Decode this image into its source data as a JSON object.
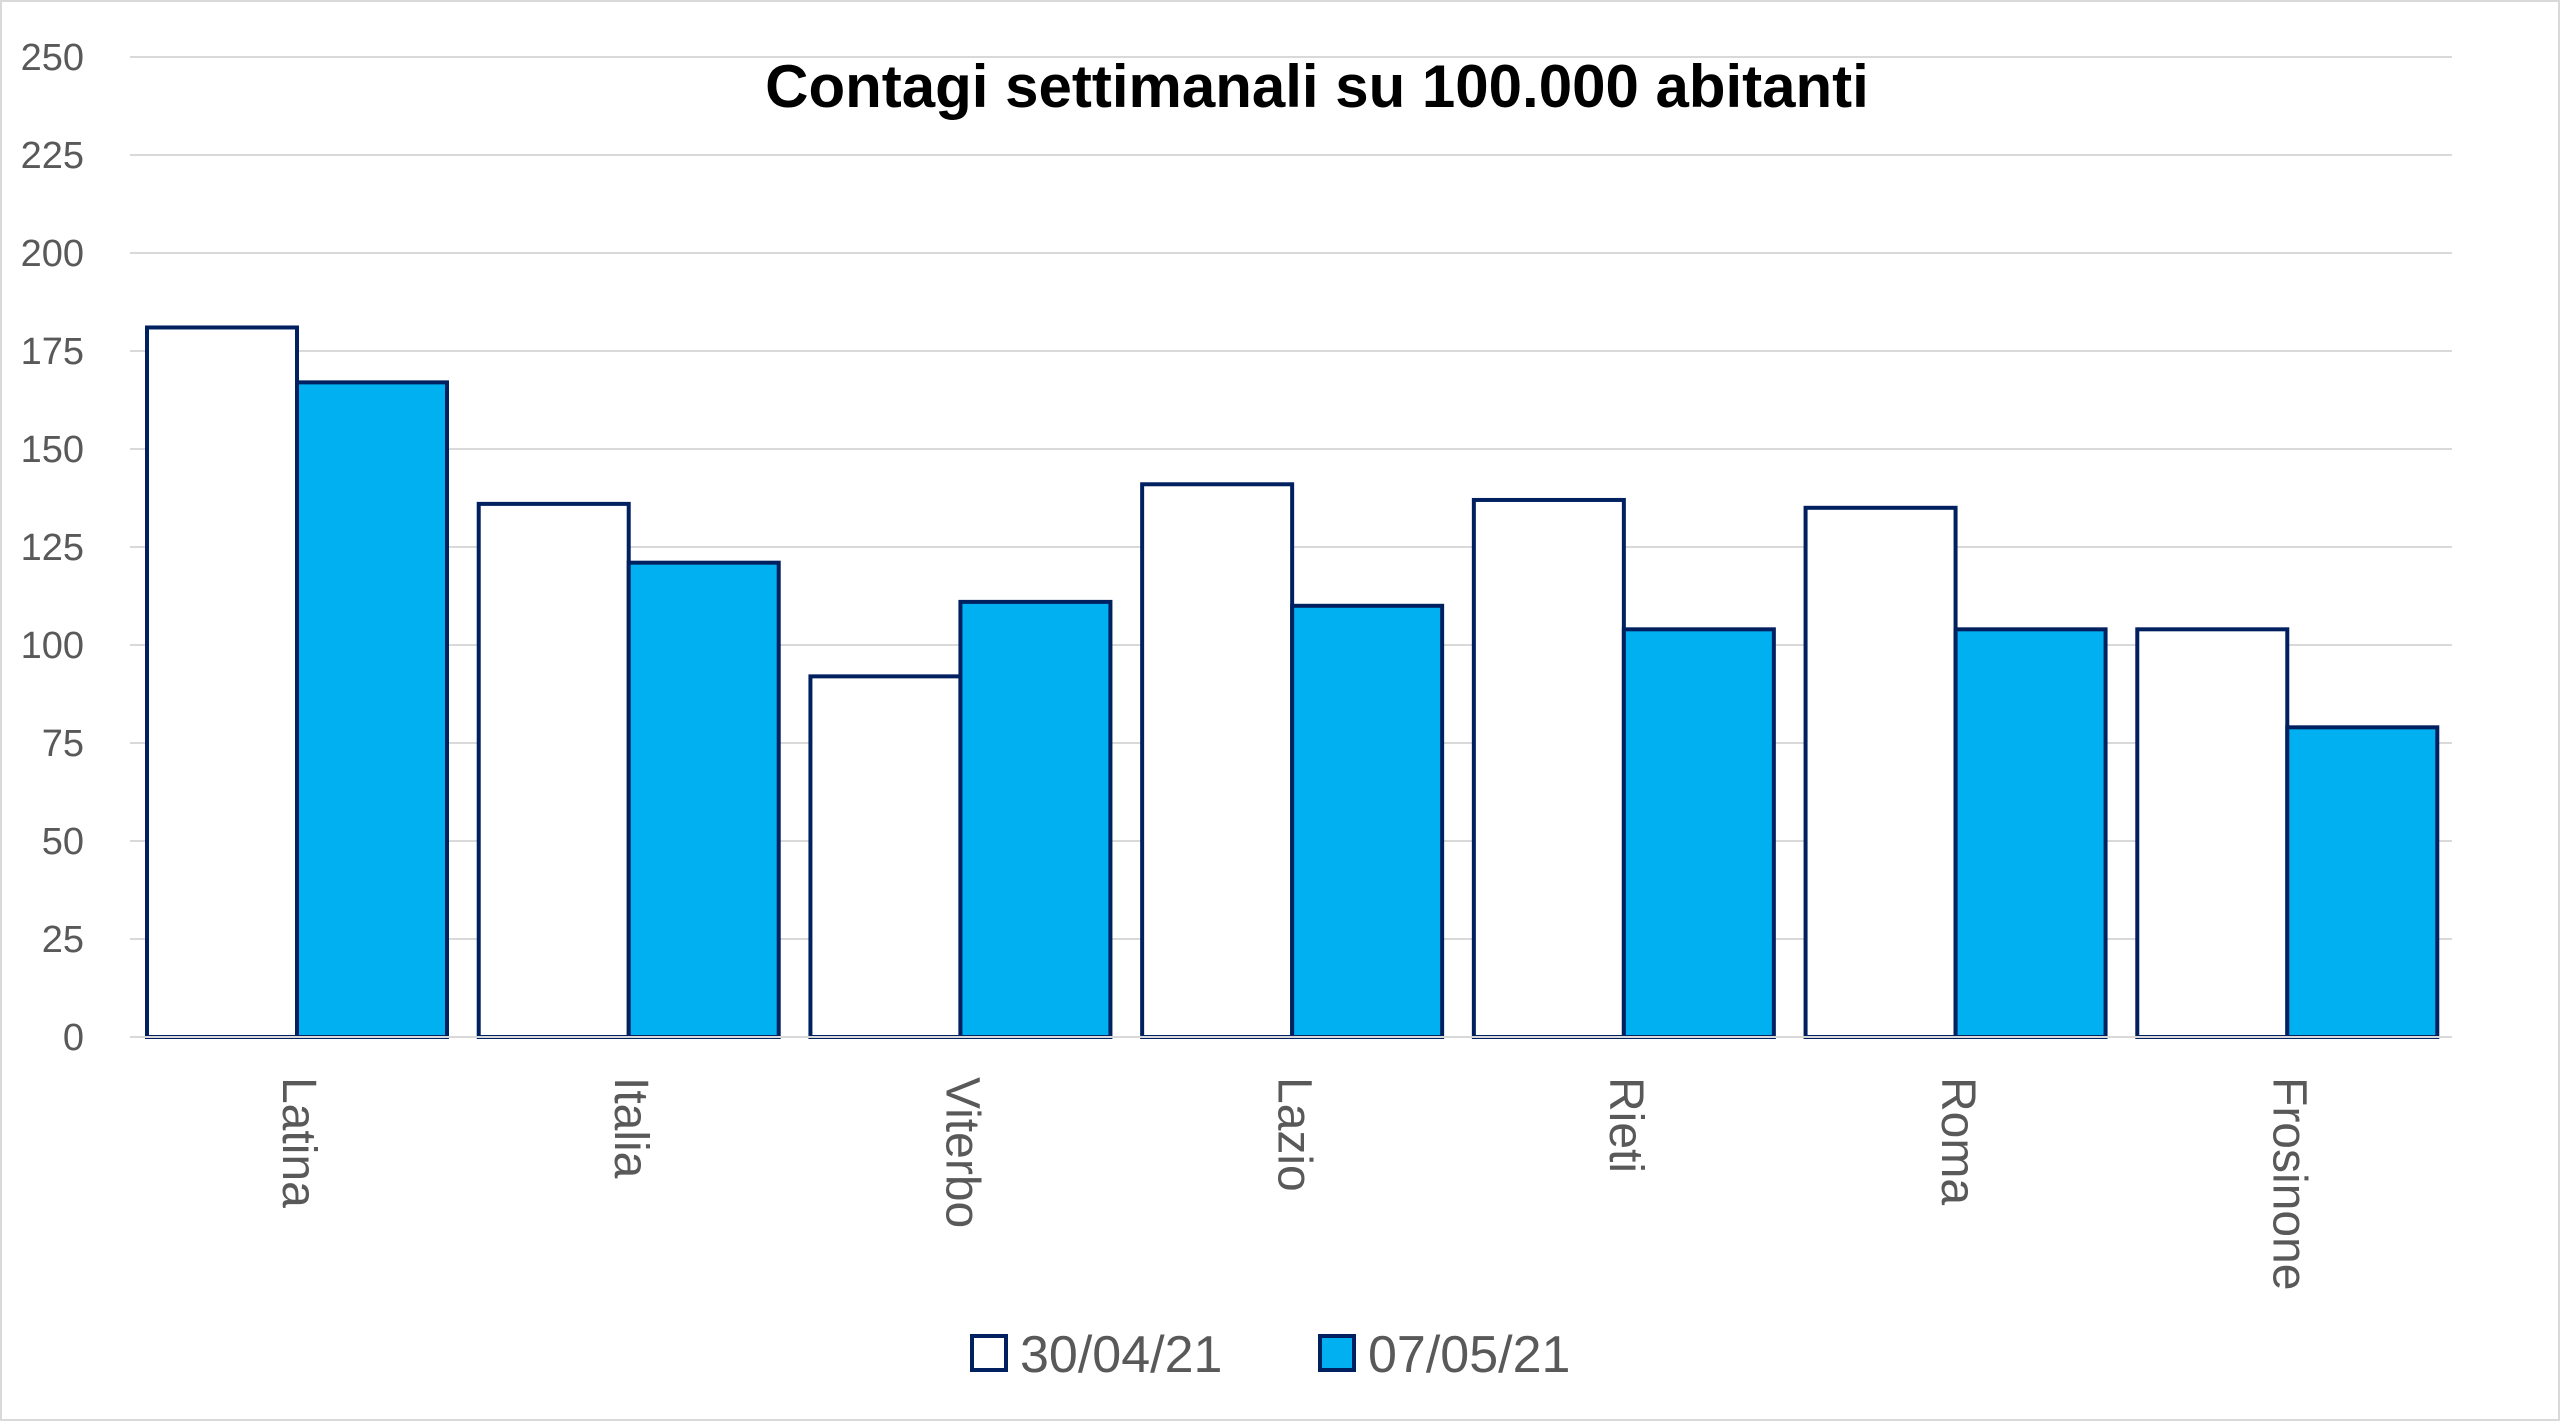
{
  "chart_data": {
    "type": "bar",
    "title": "Contagi settimanali su 100.000 abitanti",
    "xlabel": "",
    "ylabel": "",
    "categories": [
      "Latina",
      "Italia",
      "Viterbo",
      "Lazio",
      "Rieti",
      "Roma",
      "Frosinone"
    ],
    "series": [
      {
        "name": "30/04/21",
        "values": [
          181,
          136,
          92,
          141,
          137,
          135,
          104
        ],
        "color": "#ffffff"
      },
      {
        "name": "07/05/21",
        "values": [
          167,
          121,
          111,
          110,
          104,
          104,
          79
        ],
        "color": "#00b0f0"
      }
    ],
    "bar_outline_color": "#002060",
    "ylim": [
      0,
      250
    ],
    "yticks": [
      0,
      25,
      50,
      75,
      100,
      125,
      150,
      175,
      200,
      225,
      250
    ],
    "grid": true,
    "legend_position": "bottom",
    "x_tick_label_rotation": "vertical"
  }
}
